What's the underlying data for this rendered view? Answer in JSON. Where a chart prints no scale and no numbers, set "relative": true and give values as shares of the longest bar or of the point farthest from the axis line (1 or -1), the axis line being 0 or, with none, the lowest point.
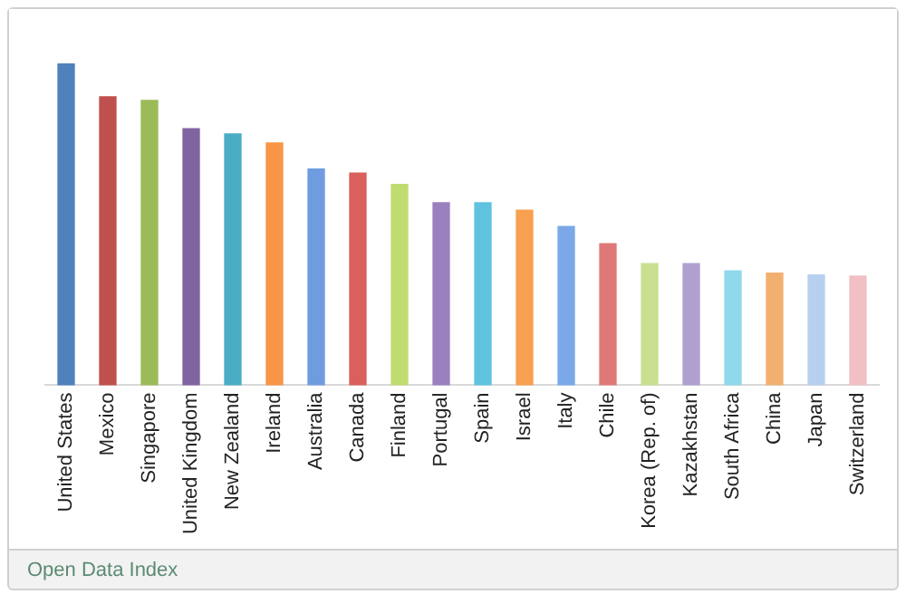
{
  "chart_data": {
    "type": "bar",
    "relative": true,
    "categories": [
      "United States",
      "Mexico",
      "Singapore",
      "United Kingdom",
      "New Zealand",
      "Ireland",
      "Australia",
      "Canada",
      "Finland",
      "Portugal",
      "Spain",
      "Israel",
      "Italy",
      "Chile",
      "Korea (Rep. of)",
      "Kazakhstan",
      "South Africa",
      "China",
      "Japan",
      "Switzerland"
    ],
    "values": [
      1,
      0.896,
      0.885,
      0.797,
      0.781,
      0.753,
      0.672,
      0.659,
      0.624,
      0.567,
      0.567,
      0.544,
      0.493,
      0.44,
      0.378,
      0.378,
      0.355,
      0.348,
      0.343,
      0.339
    ],
    "colors": [
      "#4f81bd",
      "#c0504d",
      "#9bbb59",
      "#8064a2",
      "#4bacc6",
      "#f79646",
      "#6f9be0",
      "#d9605c",
      "#c0dc70",
      "#9b80c0",
      "#5fc3df",
      "#f7a050",
      "#7aa8e8",
      "#e07878",
      "#c8e090",
      "#b0a0d0",
      "#90d8ec",
      "#f2b070",
      "#b8d0f0",
      "#f0c0c4"
    ],
    "grid": false,
    "legend": false,
    "annotations": [
      "Open Data Index"
    ]
  }
}
